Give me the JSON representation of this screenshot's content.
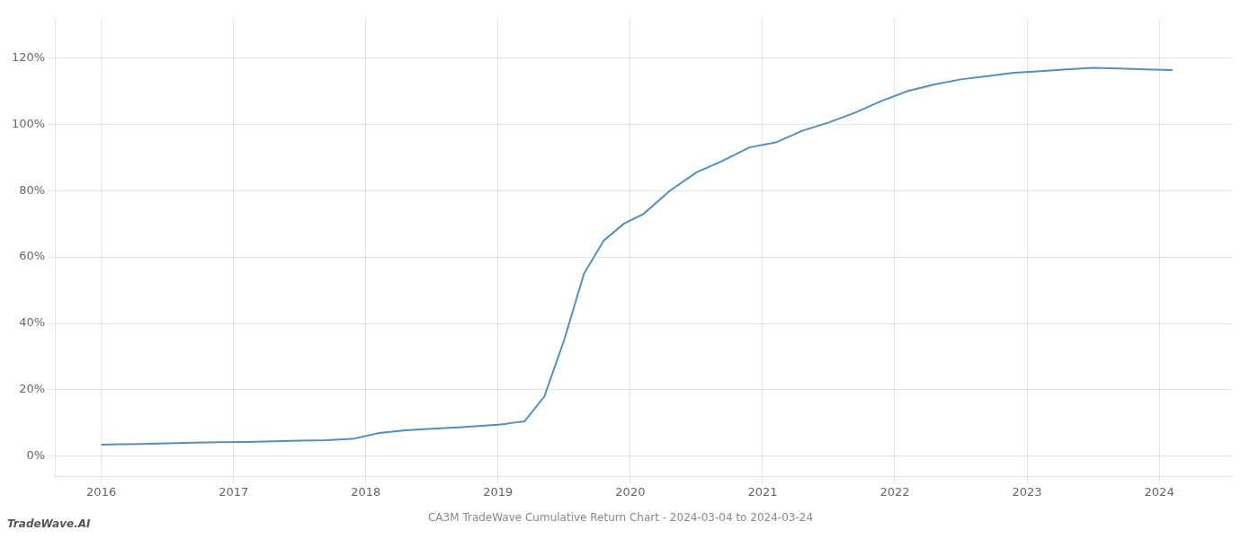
{
  "chart_data": {
    "type": "line",
    "title": "CA3M TradeWave Cumulative Return Chart - 2024-03-04 to 2024-03-24",
    "annotations": [
      "TradeWave.AI"
    ],
    "x": [
      2016.0,
      2016.15,
      2016.3,
      2016.5,
      2016.7,
      2016.9,
      2017.1,
      2017.3,
      2017.5,
      2017.7,
      2017.9,
      2018.1,
      2018.3,
      2018.5,
      2018.7,
      2018.9,
      2019.0,
      2019.05,
      2019.1,
      2019.2,
      2019.35,
      2019.5,
      2019.65,
      2019.8,
      2019.95,
      2020.1,
      2020.3,
      2020.5,
      2020.7,
      2020.9,
      2021.1,
      2021.3,
      2021.5,
      2021.7,
      2021.9,
      2022.1,
      2022.3,
      2022.5,
      2022.7,
      2022.9,
      2023.1,
      2023.3,
      2023.5,
      2023.7,
      2023.9,
      2024.1
    ],
    "values": [
      3.5,
      3.6,
      3.7,
      3.9,
      4.1,
      4.2,
      4.3,
      4.5,
      4.7,
      4.8,
      5.2,
      7.0,
      7.8,
      8.3,
      8.7,
      9.2,
      9.5,
      9.7,
      10.0,
      10.5,
      18.0,
      35.0,
      55.0,
      65.0,
      70.0,
      73.0,
      80.0,
      85.5,
      89.0,
      93.0,
      94.5,
      98.0,
      100.5,
      103.5,
      107.0,
      110.0,
      112.0,
      113.5,
      114.5,
      115.5,
      116.0,
      116.5,
      117.0,
      116.8,
      116.5,
      116.3
    ],
    "color": "#5090c0",
    "xlim": [
      2015.65,
      2024.55
    ],
    "ylim": [
      -6,
      132
    ],
    "xticks": [
      2016,
      2017,
      2018,
      2019,
      2020,
      2021,
      2022,
      2023,
      2024
    ],
    "yticks": [
      {
        "value": 0,
        "label": "0%"
      },
      {
        "value": 20,
        "label": "20%"
      },
      {
        "value": 40,
        "label": "40%"
      },
      {
        "value": 60,
        "label": "60%"
      },
      {
        "value": 80,
        "label": "80%"
      },
      {
        "value": 100,
        "label": "100%"
      },
      {
        "value": 120,
        "label": "120%"
      }
    ],
    "grid": true
  }
}
